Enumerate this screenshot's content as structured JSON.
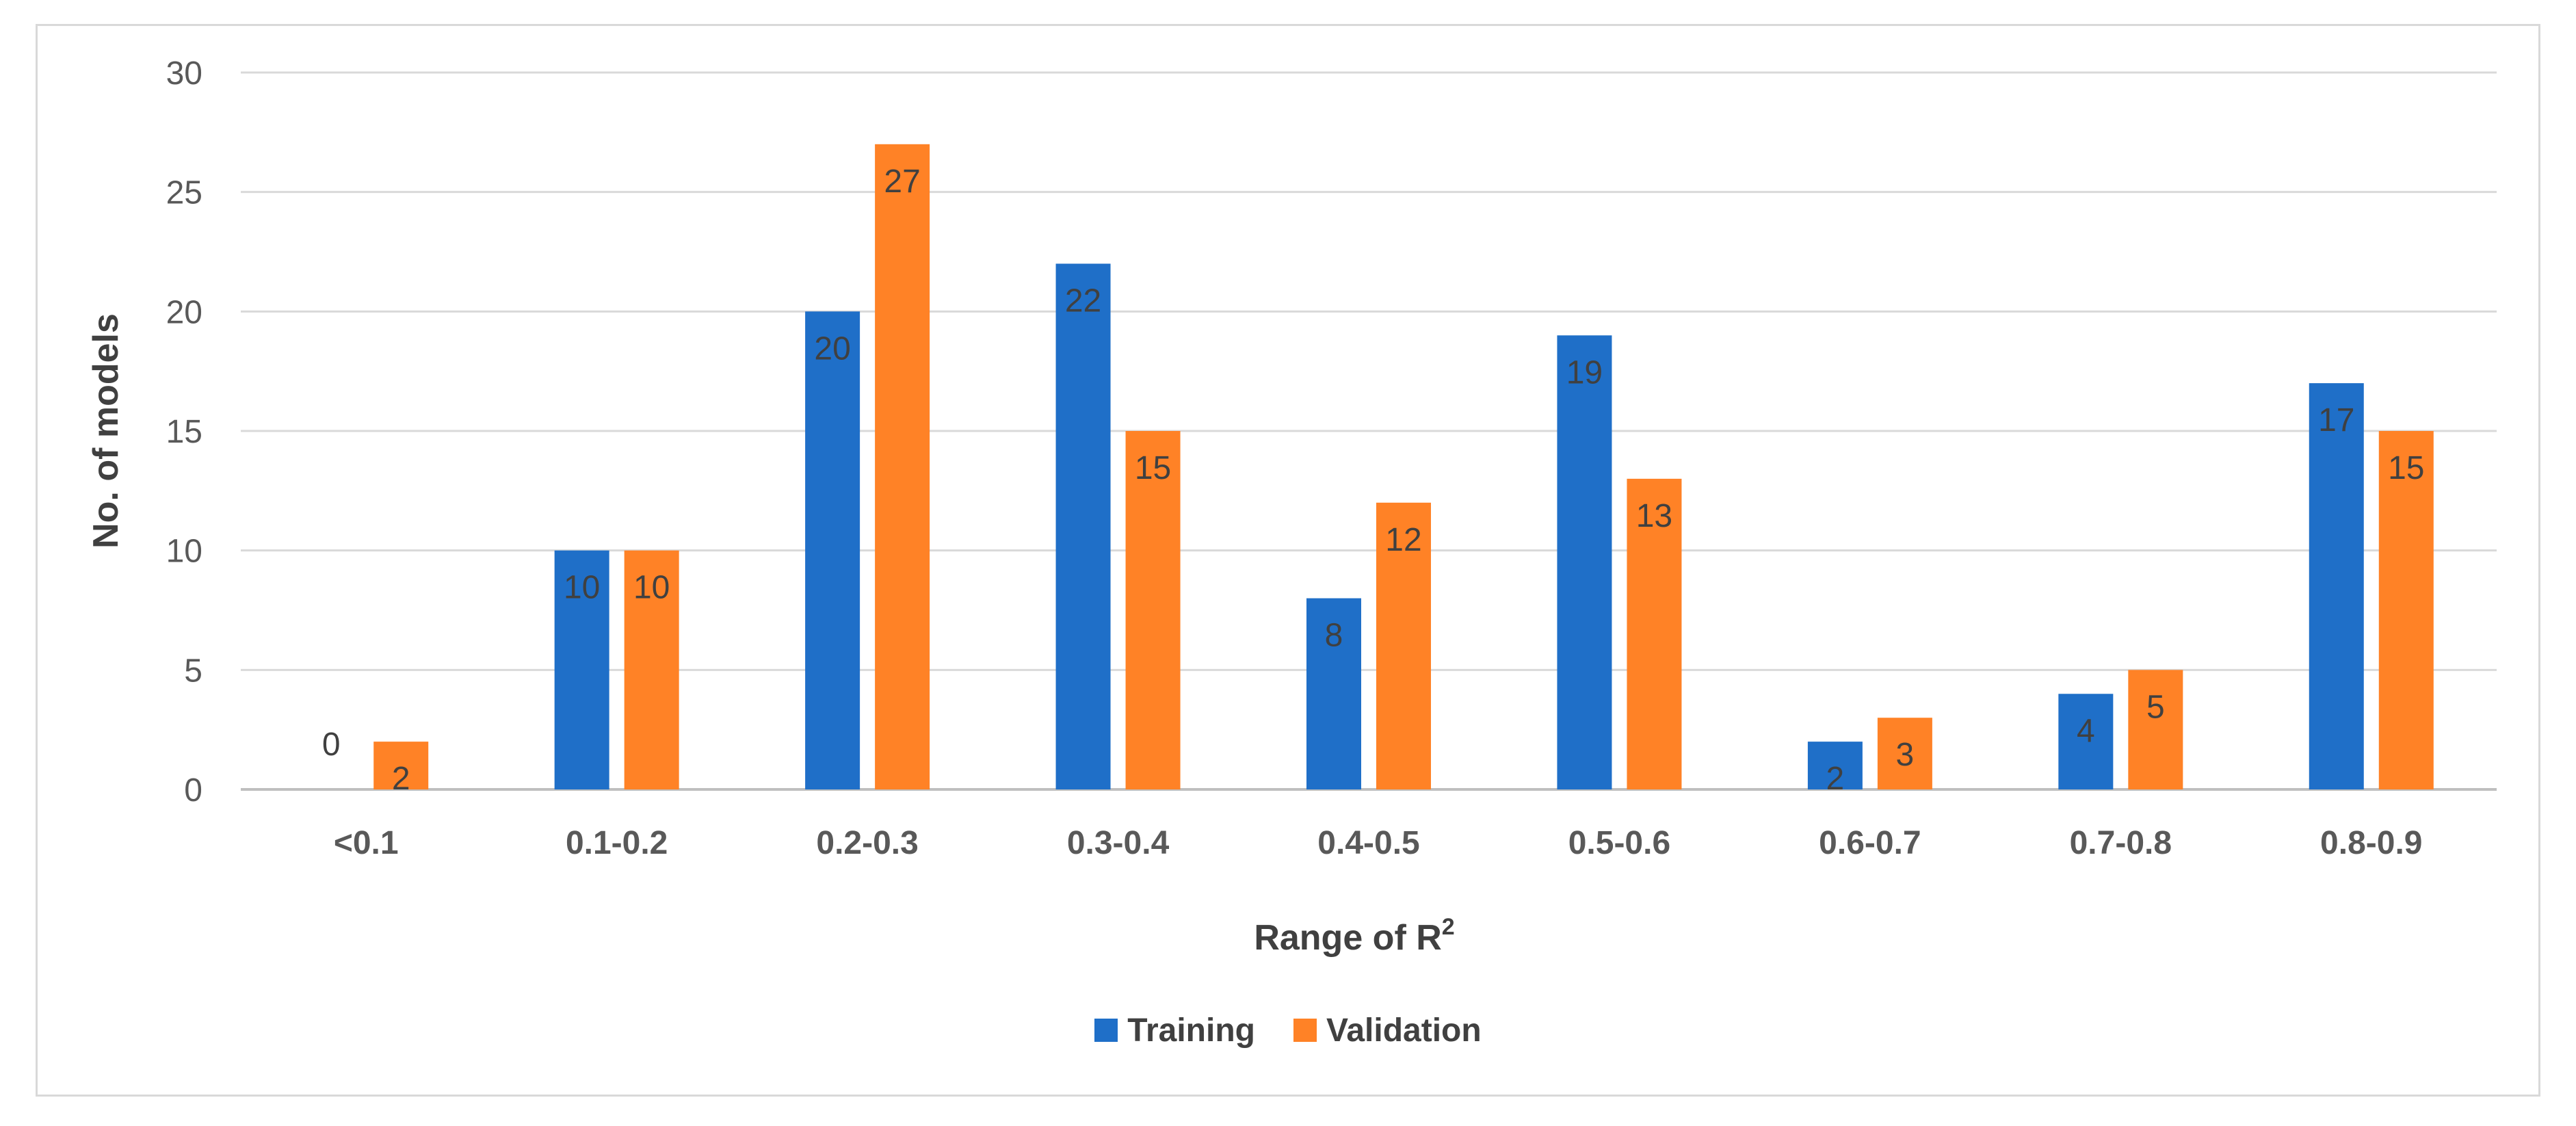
{
  "chart_data": {
    "type": "bar",
    "title": "",
    "xlabel": "Range of R",
    "xlabel_superscript": "2",
    "ylabel": "No. of models",
    "ylim": [
      0,
      30
    ],
    "yticks": [
      0,
      5,
      10,
      15,
      20,
      25,
      30
    ],
    "grid": true,
    "legend_position": "bottom",
    "categories": [
      "<0.1",
      "0.1-0.2",
      "0.2-0.3",
      "0.3-0.4",
      "0.4-0.5",
      "0.5-0.6",
      "0.6-0.7",
      "0.7-0.8",
      "0.8-0.9"
    ],
    "series": [
      {
        "name": "Training",
        "color": "#1f6fc8",
        "values": [
          0,
          10,
          20,
          22,
          8,
          19,
          2,
          4,
          17
        ]
      },
      {
        "name": "Validation",
        "color": "#ff8226",
        "values": [
          2,
          10,
          27,
          15,
          12,
          13,
          3,
          5,
          15
        ]
      }
    ]
  }
}
